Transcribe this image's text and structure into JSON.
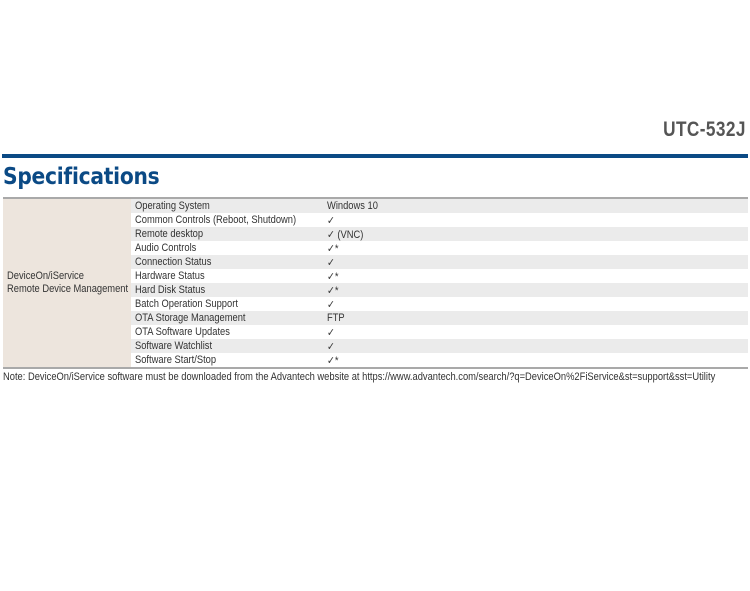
{
  "header": {
    "model": "UTC-532J",
    "section_title": "Specifications"
  },
  "colors": {
    "accent": "#0b4a85",
    "group_bg": "#ede5dd",
    "stripe": "#ebebeb"
  },
  "table": {
    "group_line1": "DeviceOn/iService",
    "group_line2": "Remote Device Management",
    "rows": [
      {
        "label": "Operating System",
        "value": "Windows 10"
      },
      {
        "label": "Common Controls (Reboot, Shutdown)",
        "value": "✓"
      },
      {
        "label": "Remote desktop",
        "value": "✓ (VNC)"
      },
      {
        "label": "Audio Controls",
        "value": "✓*"
      },
      {
        "label": "Connection Status",
        "value": "✓"
      },
      {
        "label": "Hardware Status",
        "value": "✓*"
      },
      {
        "label": "Hard Disk Status",
        "value": "✓*"
      },
      {
        "label": "Batch Operation Support",
        "value": "✓"
      },
      {
        "label": "OTA Storage Management",
        "value": "FTP"
      },
      {
        "label": "OTA Software Updates",
        "value": "✓"
      },
      {
        "label": "Software Watchlist",
        "value": "✓"
      },
      {
        "label": "Software Start/Stop",
        "value": "✓*"
      }
    ]
  },
  "note": "Note: DeviceOn/iService software must be downloaded from the Advantech website at https://www.advantech.com/search/?q=DeviceOn%2FiService&st=support&sst=Utility"
}
